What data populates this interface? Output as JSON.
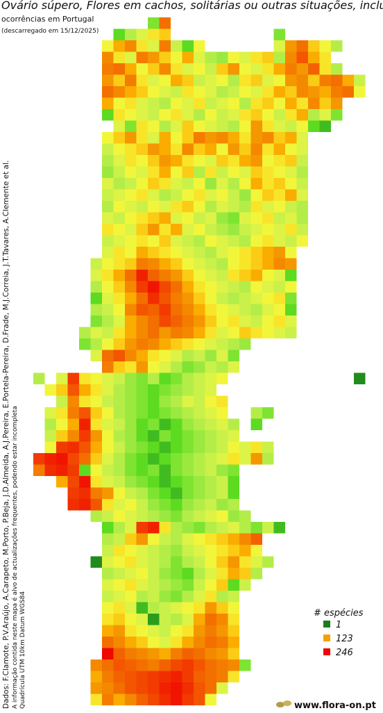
{
  "header": {
    "title": "Ovário súpero, Flores em cachos, solitárias ou outras situações, incluir",
    "subtitle": "ocorrências em Portugal",
    "date": "(descarregado em 15/12/2025)"
  },
  "credits": [
    "Dados: F.Clamote, P.V.Araújo, A.Carapeto, M.Porto, P.Beja, J.D.Almeida, A.J.Pereira, E.Portela-Pereira, D.Frade, M.J.Correia, J.T.Tavares, A.Clemente et al.",
    "A informação contida neste mapa é alvo de actualizações frequentes, podendo estar incompleta",
    "Quadrícula UTM 10km Datum WGS84"
  ],
  "legend": {
    "title": "# espécies",
    "items": [
      {
        "value": 1,
        "color": "#1a7f1a"
      },
      {
        "value": 123,
        "color": "#f5a000"
      },
      {
        "value": 246,
        "color": "#f00000"
      }
    ]
  },
  "footer": "www.flora-on.pt",
  "grid": [
    {
      "row": 0,
      "col": 10,
      "values": [
        40,
        160
      ]
    },
    {
      "row": 1,
      "col": 7,
      "values": [
        30,
        60,
        80,
        100,
        110,
        null,
        null,
        null,
        null,
        null,
        null,
        null,
        null,
        null,
        40
      ]
    },
    {
      "row": 2,
      "col": 6,
      "values": [
        90,
        120,
        140,
        100,
        80,
        150,
        70,
        30,
        90,
        null,
        null,
        null,
        null,
        null,
        null,
        80,
        130,
        160,
        110,
        90,
        60
      ]
    },
    {
      "row": 3,
      "col": 6,
      "values": [
        140,
        100,
        80,
        150,
        130,
        110,
        90,
        120,
        80,
        60,
        50,
        90,
        80,
        100,
        110,
        60,
        140,
        180,
        120,
        100
      ]
    },
    {
      "row": 4,
      "col": 6,
      "values": [
        150,
        160,
        120,
        90,
        110,
        140,
        100,
        80,
        90,
        70,
        110,
        130,
        90,
        80,
        100,
        120,
        150,
        130,
        170,
        100,
        60
      ]
    },
    {
      "row": 5,
      "col": 6,
      "values": [
        130,
        110,
        150,
        100,
        80,
        90,
        120,
        110,
        70,
        80,
        90,
        60,
        100,
        110,
        80,
        90,
        130,
        140,
        110,
        150,
        160,
        120,
        70
      ]
    },
    {
      "row": 6,
      "col": 6,
      "values": [
        160,
        140,
        120,
        110,
        90,
        80,
        70,
        100,
        90,
        80,
        60,
        70,
        90,
        80,
        100,
        120,
        110,
        140,
        130,
        120,
        150,
        160,
        90
      ]
    },
    {
      "row": 7,
      "col": 6,
      "values": [
        120,
        90,
        100,
        80,
        70,
        60,
        90,
        80,
        100,
        70,
        80,
        90,
        60,
        100,
        110,
        90,
        120,
        100,
        140,
        110,
        130
      ]
    },
    {
      "row": 8,
      "col": 6,
      "values": [
        30,
        100,
        90,
        80,
        70,
        90,
        100,
        80,
        60,
        90,
        70,
        80,
        100,
        110,
        90,
        70,
        100,
        120,
        60,
        80,
        40
      ]
    },
    {
      "row": 9,
      "col": 6,
      "values": [
        null,
        80,
        40,
        100,
        90,
        60,
        80,
        110,
        90,
        80,
        70,
        60,
        90,
        130,
        100,
        80,
        70,
        90,
        30,
        20
      ]
    },
    {
      "row": 10,
      "col": 6,
      "values": [
        90,
        110,
        130,
        100,
        80,
        120,
        90,
        110,
        150,
        130,
        140,
        120,
        100,
        130,
        140,
        110,
        120,
        80
      ]
    },
    {
      "row": 11,
      "col": 6,
      "values": [
        70,
        90,
        100,
        110,
        130,
        120,
        100,
        140,
        110,
        120,
        90,
        130,
        110,
        140,
        100,
        120,
        90,
        80
      ]
    },
    {
      "row": 12,
      "col": 6,
      "values": [
        60,
        80,
        100,
        90,
        110,
        130,
        120,
        100,
        90,
        80,
        110,
        100,
        120,
        130,
        90,
        100,
        110,
        70
      ]
    },
    {
      "row": 13,
      "col": 6,
      "values": [
        50,
        70,
        90,
        80,
        100,
        120,
        90,
        110,
        60,
        100,
        70,
        90,
        80,
        110,
        100,
        90,
        80,
        60
      ]
    },
    {
      "row": 14,
      "col": 6,
      "values": [
        80,
        60,
        70,
        90,
        110,
        100,
        80,
        70,
        90,
        50,
        80,
        60,
        90,
        120,
        100,
        110,
        90,
        70
      ]
    },
    {
      "row": 15,
      "col": 6,
      "values": [
        70,
        80,
        90,
        100,
        80,
        60,
        70,
        90,
        100,
        80,
        90,
        70,
        50,
        90,
        110,
        100,
        120,
        80
      ]
    },
    {
      "row": 16,
      "col": 6,
      "values": [
        60,
        90,
        80,
        70,
        90,
        80,
        100,
        110,
        90,
        60,
        80,
        70,
        60,
        100,
        80,
        90,
        70,
        60
      ]
    },
    {
      "row": 17,
      "col": 6,
      "values": [
        80,
        70,
        90,
        100,
        110,
        120,
        80,
        90,
        70,
        80,
        50,
        40,
        80,
        90,
        100,
        70,
        80,
        60
      ]
    },
    {
      "row": 18,
      "col": 6,
      "values": [
        100,
        90,
        80,
        110,
        130,
        100,
        120,
        80,
        90,
        70,
        60,
        50,
        70,
        80,
        90,
        80,
        100,
        70
      ]
    },
    {
      "row": 19,
      "col": 6,
      "values": [
        70,
        80,
        90,
        100,
        90,
        110,
        80,
        70,
        60,
        90,
        80,
        70,
        60,
        90,
        100,
        80,
        70,
        90
      ]
    },
    {
      "row": 20,
      "col": 6,
      "values": [
        80,
        100,
        90,
        120,
        110,
        100,
        90,
        80,
        70,
        60,
        80,
        90,
        100,
        110,
        120,
        130,
        90
      ]
    },
    {
      "row": 21,
      "col": 5,
      "values": [
        70,
        90,
        100,
        110,
        150,
        140,
        120,
        110,
        90,
        80,
        70,
        60,
        90,
        100,
        110,
        120,
        140,
        130
      ]
    },
    {
      "row": 22,
      "col": 5,
      "values": [
        80,
        100,
        120,
        160,
        220,
        170,
        150,
        130,
        110,
        90,
        80,
        70,
        100,
        110,
        120,
        90,
        80,
        30
      ]
    },
    {
      "row": 23,
      "col": 5,
      "values": [
        60,
        90,
        110,
        140,
        200,
        230,
        190,
        160,
        120,
        100,
        90,
        80,
        70,
        60,
        90,
        80,
        70,
        90
      ]
    },
    {
      "row": 24,
      "col": 5,
      "values": [
        30,
        80,
        100,
        120,
        160,
        210,
        180,
        150,
        130,
        110,
        90,
        70,
        60,
        70,
        80,
        90,
        100,
        40
      ]
    },
    {
      "row": 25,
      "col": 5,
      "values": [
        60,
        70,
        90,
        140,
        180,
        170,
        200,
        160,
        140,
        120,
        100,
        90,
        80,
        70,
        60,
        80,
        90,
        30
      ]
    },
    {
      "row": 26,
      "col": 5,
      "values": [
        40,
        60,
        80,
        120,
        140,
        160,
        190,
        170,
        150,
        130,
        110,
        90,
        100,
        80,
        70,
        90,
        100,
        80
      ]
    },
    {
      "row": 27,
      "col": 4,
      "values": [
        60,
        80,
        70,
        100,
        120,
        140,
        160,
        130,
        150,
        140,
        120,
        100,
        80,
        90,
        110,
        100,
        90,
        80,
        70
      ]
    },
    {
      "row": 28,
      "col": 4,
      "values": [
        40,
        60,
        90,
        110,
        130,
        150,
        140,
        120,
        110,
        100,
        90,
        80,
        70,
        60,
        50
      ]
    },
    {
      "row": 29,
      "col": 4,
      "values": [
        null,
        80,
        160,
        180,
        140,
        120,
        100,
        90,
        80,
        60,
        70,
        50,
        80,
        40
      ]
    },
    {
      "row": 30,
      "col": 3,
      "values": [
        null,
        null,
        null,
        150,
        110,
        100,
        130,
        90,
        80,
        60,
        40,
        50,
        70,
        60,
        80
      ]
    },
    {
      "row": 31,
      "col": 0,
      "values": [
        60,
        null,
        80,
        200,
        100,
        90,
        80,
        70,
        50,
        40,
        60,
        30,
        40,
        60,
        70,
        80,
        90,
        null,
        null,
        null,
        null,
        null,
        null,
        null,
        null,
        null,
        null,
        null,
        5
      ]
    },
    {
      "row": 32,
      "col": 0,
      "values": [
        null,
        90,
        110,
        180,
        120,
        100,
        80,
        60,
        50,
        40,
        30,
        40,
        50,
        60,
        70,
        80
      ]
    },
    {
      "row": 33,
      "col": 0,
      "values": [
        null,
        null,
        70,
        140,
        100,
        90,
        70,
        60,
        50,
        40,
        30,
        50,
        60,
        80,
        70,
        90,
        100
      ]
    },
    {
      "row": 34,
      "col": 1,
      "values": [
        80,
        100,
        150,
        180,
        110,
        90,
        60,
        50,
        40,
        30,
        40,
        50,
        60,
        70,
        80,
        90,
        null,
        null,
        60,
        40
      ]
    },
    {
      "row": 35,
      "col": 1,
      "values": [
        60,
        90,
        120,
        220,
        100,
        80,
        70,
        50,
        30,
        40,
        20,
        30,
        50,
        60,
        70,
        80,
        60,
        null,
        30
      ]
    },
    {
      "row": 36,
      "col": 1,
      "values": [
        70,
        110,
        140,
        200,
        130,
        90,
        60,
        50,
        30,
        20,
        40,
        30,
        40,
        50,
        60,
        70,
        80
      ]
    },
    {
      "row": 37,
      "col": 0,
      "values": [
        null,
        90,
        200,
        210,
        180,
        120,
        90,
        70,
        50,
        40,
        30,
        20,
        30,
        40,
        50,
        60,
        70,
        90,
        80,
        100,
        70
      ]
    },
    {
      "row": 38,
      "col": 0,
      "values": [
        200,
        220,
        230,
        190,
        160,
        110,
        80,
        60,
        40,
        30,
        20,
        30,
        40,
        50,
        60,
        70,
        80,
        100,
        80,
        130,
        60
      ]
    },
    {
      "row": 39,
      "col": 0,
      "values": [
        150,
        210,
        220,
        200,
        30,
        90,
        70,
        60,
        40,
        30,
        40,
        20,
        40,
        50,
        60,
        70,
        50,
        40
      ]
    },
    {
      "row": 40,
      "col": 1,
      "values": [
        null,
        120,
        190,
        230,
        100,
        80,
        70,
        50,
        40,
        30,
        20,
        30,
        40,
        50,
        60,
        70,
        30
      ]
    },
    {
      "row": 41,
      "col": 3,
      "values": [
        200,
        210,
        150,
        130,
        90,
        70,
        60,
        40,
        30,
        20,
        40,
        50,
        60,
        70,
        30
      ]
    },
    {
      "row": 42,
      "col": 3,
      "values": [
        210,
        220,
        180,
        100,
        80,
        90,
        70,
        50,
        40,
        30,
        50,
        60,
        70,
        50,
        60
      ]
    },
    {
      "row": 43,
      "col": 5,
      "values": [
        60,
        70,
        90,
        80,
        70,
        60,
        50,
        40,
        60,
        70,
        80,
        90,
        50,
        60
      ]
    },
    {
      "row": 44,
      "col": 6,
      "values": [
        30,
        60,
        80,
        200,
        220,
        100,
        60,
        50,
        40,
        60,
        70,
        80,
        60,
        40,
        70,
        20
      ]
    },
    {
      "row": 45,
      "col": 6,
      "values": [
        60,
        70,
        110,
        130,
        90,
        70,
        60,
        80,
        90,
        100,
        110,
        120,
        140,
        170
      ]
    },
    {
      "row": 46,
      "col": 6,
      "values": [
        70,
        100,
        90,
        80,
        70,
        60,
        50,
        70,
        80,
        90,
        100,
        110,
        120,
        90
      ]
    },
    {
      "row": 47,
      "col": 5,
      "values": [
        5,
        80,
        90,
        100,
        80,
        70,
        60,
        40,
        60,
        70,
        90,
        110,
        130,
        100,
        80,
        60
      ]
    },
    {
      "row": 48,
      "col": 6,
      "values": [
        60,
        70,
        80,
        90,
        70,
        50,
        40,
        30,
        60,
        80,
        100,
        120,
        110,
        60
      ]
    },
    {
      "row": 49,
      "col": 6,
      "values": [
        80,
        90,
        100,
        80,
        70,
        60,
        50,
        40,
        70,
        90,
        110,
        30,
        70
      ]
    },
    {
      "row": 50,
      "col": 6,
      "values": [
        70,
        80,
        90,
        60,
        70,
        50,
        40,
        60,
        80,
        100,
        60,
        70
      ]
    },
    {
      "row": 51,
      "col": 6,
      "values": [
        90,
        100,
        80,
        20,
        60,
        70,
        80,
        90,
        100,
        130,
        110,
        90
      ]
    },
    {
      "row": 52,
      "col": 6,
      "values": [
        100,
        110,
        90,
        80,
        10,
        70,
        60,
        80,
        120,
        160,
        140,
        100
      ]
    },
    {
      "row": 53,
      "col": 6,
      "values": [
        120,
        130,
        100,
        90,
        80,
        70,
        90,
        100,
        130,
        150,
        130,
        110
      ]
    },
    {
      "row": 54,
      "col": 6,
      "values": [
        160,
        140,
        120,
        110,
        90,
        80,
        100,
        120,
        140,
        160,
        150,
        120
      ]
    },
    {
      "row": 55,
      "col": 6,
      "values": [
        240,
        170,
        150,
        140,
        130,
        120,
        150,
        170,
        160,
        140,
        130,
        110
      ]
    },
    {
      "row": 56,
      "col": 5,
      "values": [
        140,
        160,
        180,
        170,
        160,
        150,
        170,
        190,
        200,
        180,
        160,
        150,
        140,
        40
      ]
    },
    {
      "row": 57,
      "col": 5,
      "values": [
        120,
        150,
        170,
        180,
        190,
        200,
        210,
        220,
        200,
        170,
        160,
        150,
        100
      ]
    },
    {
      "row": 58,
      "col": 5,
      "values": [
        130,
        140,
        160,
        180,
        190,
        200,
        220,
        230,
        210,
        180,
        160,
        80
      ]
    },
    {
      "row": 59,
      "col": 5,
      "values": [
        100,
        150,
        120,
        140,
        170,
        190,
        210,
        230,
        200,
        180,
        90
      ]
    }
  ]
}
